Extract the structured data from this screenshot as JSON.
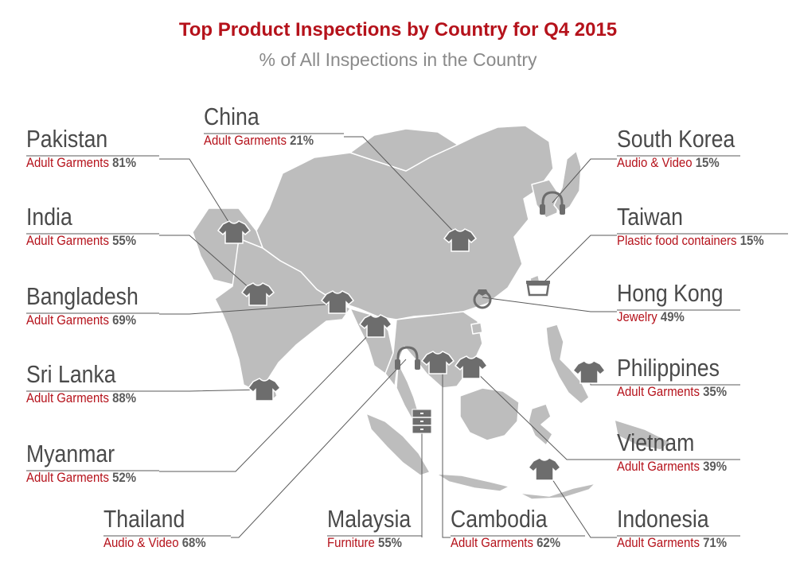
{
  "title": "Top Product Inspections by Country for Q4 2015",
  "subtitle": "% of All Inspections in the Country",
  "colors": {
    "accent": "#b5121b",
    "land": "#bdbdbd",
    "icon": "#6d6d6d",
    "text": "#4a4a4a"
  },
  "countries": [
    {
      "name": "Pakistan",
      "product": "Adult Garments",
      "percent": "81%",
      "icon": "tshirt-icon"
    },
    {
      "name": "China",
      "product": "Adult Garments",
      "percent": "21%",
      "icon": "tshirt-icon"
    },
    {
      "name": "South Korea",
      "product": "Audio & Video",
      "percent": "15%",
      "icon": "headphones-icon"
    },
    {
      "name": "India",
      "product": "Adult Garments",
      "percent": "55%",
      "icon": "tshirt-icon"
    },
    {
      "name": "Taiwan",
      "product": "Plastic food containers",
      "percent": "15%",
      "icon": "container-icon"
    },
    {
      "name": "Bangladesh",
      "product": "Adult Garments",
      "percent": "69%",
      "icon": "tshirt-icon"
    },
    {
      "name": "Hong Kong",
      "product": "Jewelry",
      "percent": "49%",
      "icon": "ring-icon"
    },
    {
      "name": "Sri Lanka",
      "product": "Adult Garments",
      "percent": "88%",
      "icon": "tshirt-icon"
    },
    {
      "name": "Philippines",
      "product": "Adult Garments",
      "percent": "35%",
      "icon": "tshirt-icon"
    },
    {
      "name": "Myanmar",
      "product": "Adult Garments",
      "percent": "52%",
      "icon": "tshirt-icon"
    },
    {
      "name": "Vietnam",
      "product": "Adult Garments",
      "percent": "39%",
      "icon": "tshirt-icon"
    },
    {
      "name": "Thailand",
      "product": "Audio & Video",
      "percent": "68%",
      "icon": "headphones-icon"
    },
    {
      "name": "Malaysia",
      "product": "Furniture",
      "percent": "55%",
      "icon": "furniture-icon"
    },
    {
      "name": "Cambodia",
      "product": "Adult Garments",
      "percent": "62%",
      "icon": "tshirt-icon"
    },
    {
      "name": "Indonesia",
      "product": "Adult Garments",
      "percent": "71%",
      "icon": "tshirt-icon"
    }
  ]
}
